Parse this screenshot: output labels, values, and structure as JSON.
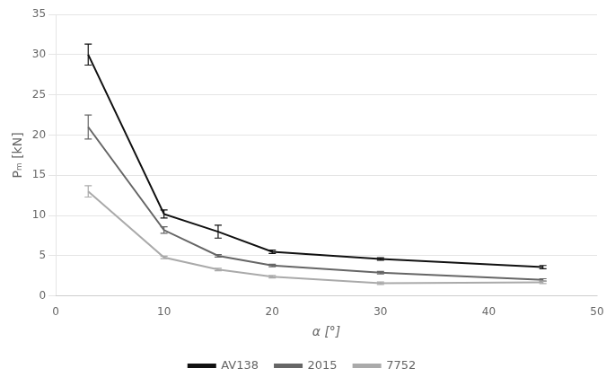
{
  "chart_data": {
    "type": "line",
    "x": [
      3,
      10,
      15,
      20,
      30,
      45
    ],
    "series": [
      {
        "name": "AV138",
        "color": "#111111",
        "values": [
          30.0,
          10.2,
          8.0,
          5.5,
          4.6,
          3.6
        ],
        "yerr": [
          1.3,
          0.5,
          0.8,
          0.2,
          0.15,
          0.2
        ]
      },
      {
        "name": "2015",
        "color": "#666666",
        "values": [
          21.0,
          8.2,
          5.0,
          3.8,
          2.9,
          2.0
        ],
        "yerr": [
          1.5,
          0.4,
          0.15,
          0.15,
          0.15,
          0.15
        ]
      },
      {
        "name": "7752",
        "color": "#aaaaaa",
        "values": [
          13.0,
          4.8,
          3.3,
          2.4,
          1.6,
          1.7
        ],
        "yerr": [
          0.7,
          0.15,
          0.15,
          0.15,
          0.15,
          0.15
        ]
      }
    ],
    "xlabel": "α [°]",
    "ylabel": "Pₘ [kN]",
    "xlim": [
      0,
      50
    ],
    "ylim": [
      0,
      35
    ],
    "xticks": [
      0,
      10,
      20,
      30,
      40,
      50
    ],
    "yticks": [
      0,
      5,
      10,
      15,
      20,
      25,
      30,
      35
    ],
    "grid": "y",
    "legend": "bottom",
    "marker": "none"
  }
}
